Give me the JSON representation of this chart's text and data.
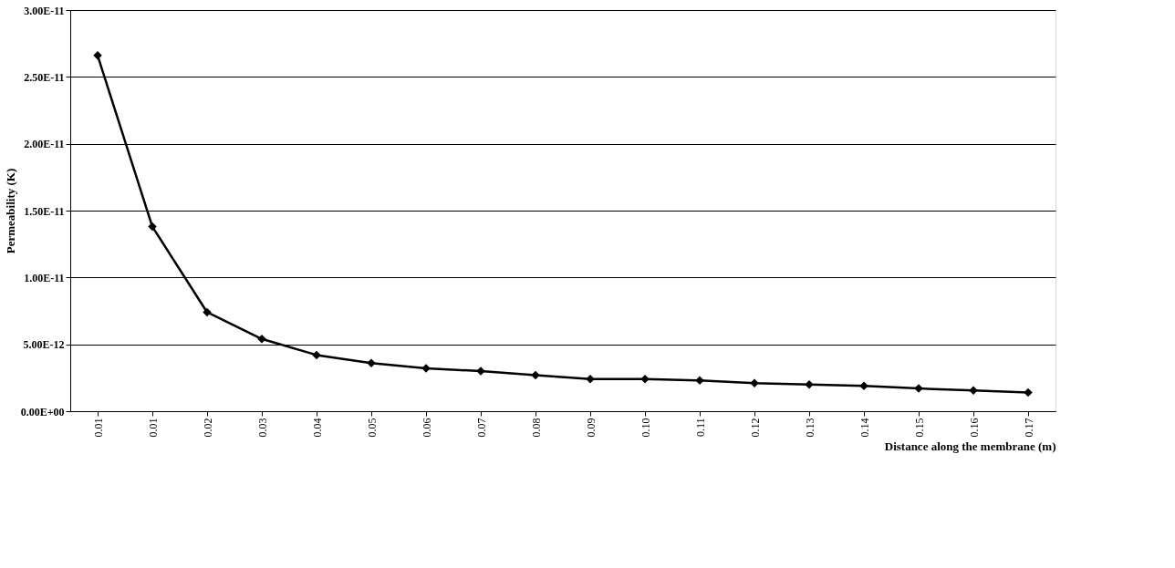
{
  "chart_data": {
    "type": "line",
    "xlabel": "Distance along the membrane (m)",
    "ylabel": "Permeability (K)",
    "categories": [
      "0.01",
      "0.01",
      "0.02",
      "0.03",
      "0.04",
      "0.05",
      "0.06",
      "0.07",
      "0.08",
      "0.09",
      "0.10",
      "0.11",
      "0.12",
      "0.13",
      "0.14",
      "0.15",
      "0.16",
      "0.17"
    ],
    "series": [
      {
        "color": "#000000",
        "values": [
          2.66e-11,
          1.38e-11,
          7.4e-12,
          5.4e-12,
          4.2e-12,
          3.6e-12,
          3.2e-12,
          3e-12,
          2.7e-12,
          2.4e-12,
          2.4e-12,
          2.3e-12,
          2.1e-12,
          2e-12,
          1.9e-12,
          1.7e-12,
          1.55e-12,
          1.4e-12
        ]
      }
    ],
    "ylim": [
      0,
      3e-11
    ],
    "yticks": [
      {
        "value": 0,
        "label": "0.00E+00"
      },
      {
        "value": 5e-12,
        "label": "5.00E-12"
      },
      {
        "value": 1e-11,
        "label": "1.00E-11"
      },
      {
        "value": 1.5e-11,
        "label": "1.50E-11"
      },
      {
        "value": 2e-11,
        "label": "2.00E-11"
      },
      {
        "value": 2.5e-11,
        "label": "2.50E-11"
      },
      {
        "value": 3e-11,
        "label": "3.00E-11"
      }
    ],
    "grid": "y",
    "marker": "diamond",
    "line_style": "solid"
  }
}
